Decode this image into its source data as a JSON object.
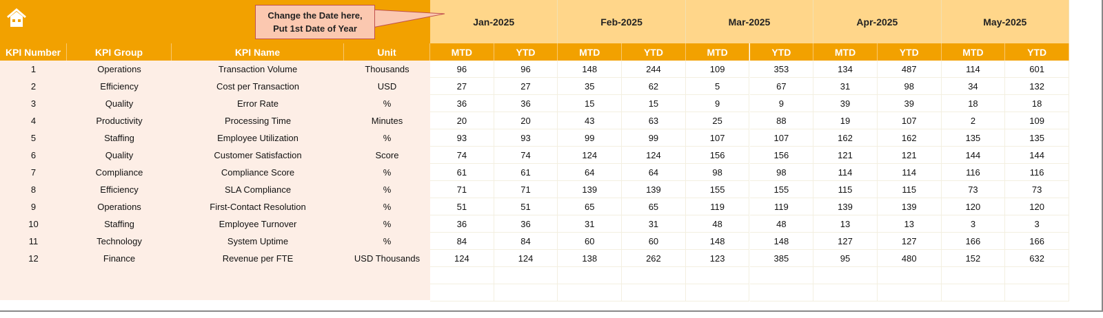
{
  "callout": {
    "line1": "Change the Date here,",
    "line2": "Put 1st Date of Year"
  },
  "months": [
    "Jan-2025",
    "Feb-2025",
    "Mar-2025",
    "Apr-2025",
    "May-2025"
  ],
  "headers": {
    "kpi_number": "KPI Number",
    "kpi_group": "KPI Group",
    "kpi_name": "KPI Name",
    "unit": "Unit",
    "mtd": "MTD",
    "ytd": "YTD"
  },
  "colors": {
    "orange": "#f2a100",
    "light_orange": "#ffd68a",
    "pink": "#fdeee6"
  },
  "rows": [
    {
      "n": "1",
      "group": "Operations",
      "name": "Transaction Volume",
      "unit": "Thousands",
      "vals": [
        "96",
        "96",
        "148",
        "244",
        "109",
        "353",
        "134",
        "487",
        "114",
        "601"
      ]
    },
    {
      "n": "2",
      "group": "Efficiency",
      "name": "Cost per Transaction",
      "unit": "USD",
      "vals": [
        "27",
        "27",
        "35",
        "62",
        "5",
        "67",
        "31",
        "98",
        "34",
        "132"
      ]
    },
    {
      "n": "3",
      "group": "Quality",
      "name": "Error Rate",
      "unit": "%",
      "vals": [
        "36",
        "36",
        "15",
        "15",
        "9",
        "9",
        "39",
        "39",
        "18",
        "18"
      ]
    },
    {
      "n": "4",
      "group": "Productivity",
      "name": "Processing Time",
      "unit": "Minutes",
      "vals": [
        "20",
        "20",
        "43",
        "63",
        "25",
        "88",
        "19",
        "107",
        "2",
        "109"
      ]
    },
    {
      "n": "5",
      "group": "Staffing",
      "name": "Employee Utilization",
      "unit": "%",
      "vals": [
        "93",
        "93",
        "99",
        "99",
        "107",
        "107",
        "162",
        "162",
        "135",
        "135"
      ]
    },
    {
      "n": "6",
      "group": "Quality",
      "name": "Customer Satisfaction",
      "unit": "Score",
      "vals": [
        "74",
        "74",
        "124",
        "124",
        "156",
        "156",
        "121",
        "121",
        "144",
        "144"
      ]
    },
    {
      "n": "7",
      "group": "Compliance",
      "name": "Compliance Score",
      "unit": "%",
      "vals": [
        "61",
        "61",
        "64",
        "64",
        "98",
        "98",
        "114",
        "114",
        "116",
        "116"
      ]
    },
    {
      "n": "8",
      "group": "Efficiency",
      "name": "SLA Compliance",
      "unit": "%",
      "vals": [
        "71",
        "71",
        "139",
        "139",
        "155",
        "155",
        "115",
        "115",
        "73",
        "73"
      ]
    },
    {
      "n": "9",
      "group": "Operations",
      "name": "First-Contact Resolution",
      "unit": "%",
      "vals": [
        "51",
        "51",
        "65",
        "65",
        "119",
        "119",
        "139",
        "139",
        "120",
        "120"
      ]
    },
    {
      "n": "10",
      "group": "Staffing",
      "name": "Employee Turnover",
      "unit": "%",
      "vals": [
        "36",
        "36",
        "31",
        "31",
        "48",
        "48",
        "13",
        "13",
        "3",
        "3"
      ]
    },
    {
      "n": "11",
      "group": "Technology",
      "name": "System Uptime",
      "unit": "%",
      "vals": [
        "84",
        "84",
        "60",
        "60",
        "148",
        "148",
        "127",
        "127",
        "166",
        "166"
      ]
    },
    {
      "n": "12",
      "group": "Finance",
      "name": "Revenue per FTE",
      "unit": "USD Thousands",
      "vals": [
        "124",
        "124",
        "138",
        "262",
        "123",
        "385",
        "95",
        "480",
        "152",
        "632"
      ]
    }
  ]
}
